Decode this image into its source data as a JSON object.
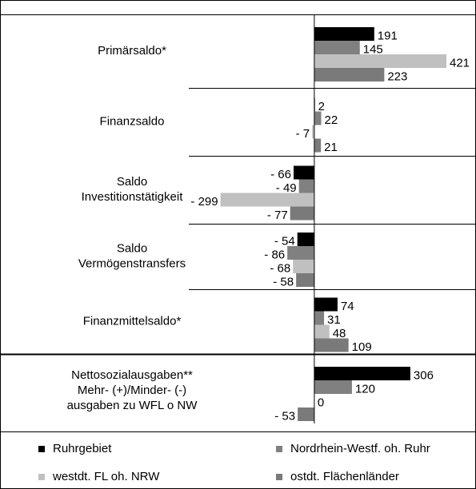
{
  "chart_data": {
    "type": "hbar",
    "categories": [
      [
        "Primärsaldo*"
      ],
      [
        "Finanzsaldo"
      ],
      [
        "Saldo",
        "Investitionstätigkeit"
      ],
      [
        "Saldo",
        "Vermögenstransfers"
      ],
      [
        "Finanzmittelsaldo*"
      ],
      [
        "Nettosozialausgaben**",
        "Mehr- (+)/Minder- (-)",
        "ausgaben zu WFL o NW"
      ]
    ],
    "series": [
      {
        "name": "Ruhrgebiet",
        "color": "#000000",
        "values": [
          191,
          2,
          -66,
          -54,
          74,
          306
        ],
        "value_labels": [
          "191",
          "2",
          "- 66",
          "- 54",
          "74",
          "306"
        ]
      },
      {
        "name": "Nordrhein-Westf. oh. Ruhr",
        "color": "#808080",
        "values": [
          145,
          22,
          -49,
          -86,
          31,
          120
        ],
        "value_labels": [
          "145",
          "22",
          "- 49",
          "- 86",
          "31",
          "120"
        ]
      },
      {
        "name": "westdt. FL oh. NRW",
        "color": "#c0c0c0",
        "values": [
          421,
          -7,
          -299,
          -68,
          48,
          0
        ],
        "value_labels": [
          "421",
          "- 7",
          "- 299",
          "- 68",
          "48",
          "0"
        ]
      },
      {
        "name": "ostdt. Flächenländer",
        "color": "#7a7a7a",
        "values": [
          223,
          21,
          -77,
          -58,
          109,
          -53
        ],
        "value_labels": [
          "223",
          "21",
          "- 77",
          "- 58",
          "109",
          "- 53"
        ]
      }
    ],
    "xlim": [
      -400,
      500
    ]
  }
}
